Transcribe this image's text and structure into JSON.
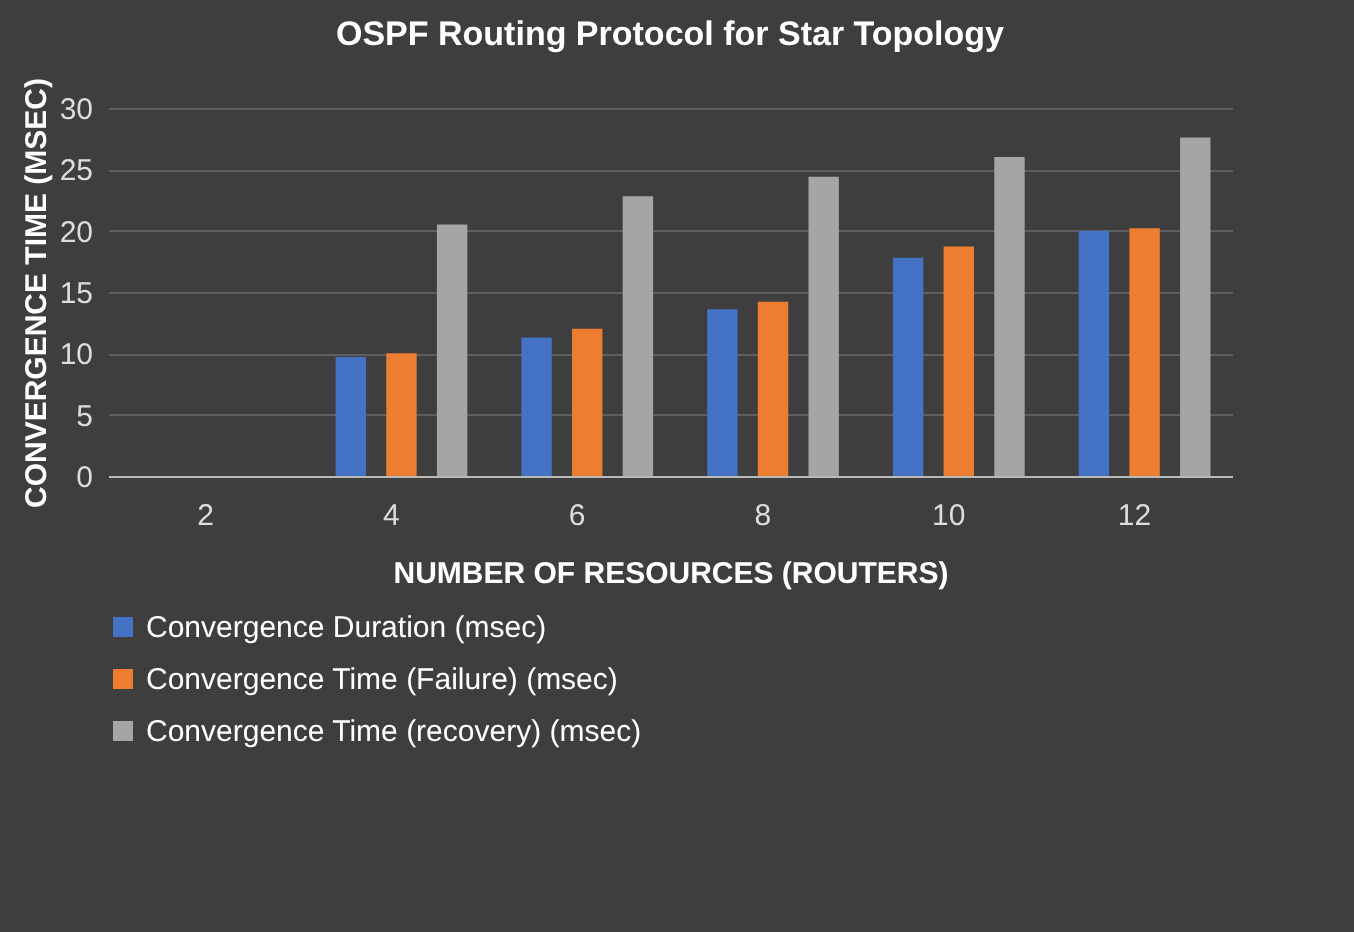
{
  "chart_data": {
    "type": "bar",
    "title": "OSPF Routing Protocol for Star Topology",
    "xlabel": "NUMBER OF RESOURCES (ROUTERS)",
    "ylabel": "CONVERGENCE TIME (MSEC)",
    "categories": [
      "2",
      "4",
      "6",
      "8",
      "10",
      "12"
    ],
    "series": [
      {
        "name": "Convergence Duration (msec)",
        "color": "#4472c4",
        "values": [
          0,
          9.7,
          11.3,
          13.6,
          17.8,
          20.0
        ]
      },
      {
        "name": "Convergence Time (Failure) (msec)",
        "color": "#ed7d31",
        "values": [
          0,
          10.0,
          12.0,
          14.2,
          18.7,
          20.2
        ]
      },
      {
        "name": "Convergence Time (recovery) (msec)",
        "color": "#a5a5a5",
        "values": [
          0,
          20.5,
          22.8,
          24.4,
          26.0,
          27.6
        ]
      }
    ],
    "ylim": [
      0,
      30
    ],
    "yticks": [
      0,
      5,
      10,
      15,
      20,
      25,
      30
    ],
    "grid": "y",
    "legend": "bottom"
  }
}
